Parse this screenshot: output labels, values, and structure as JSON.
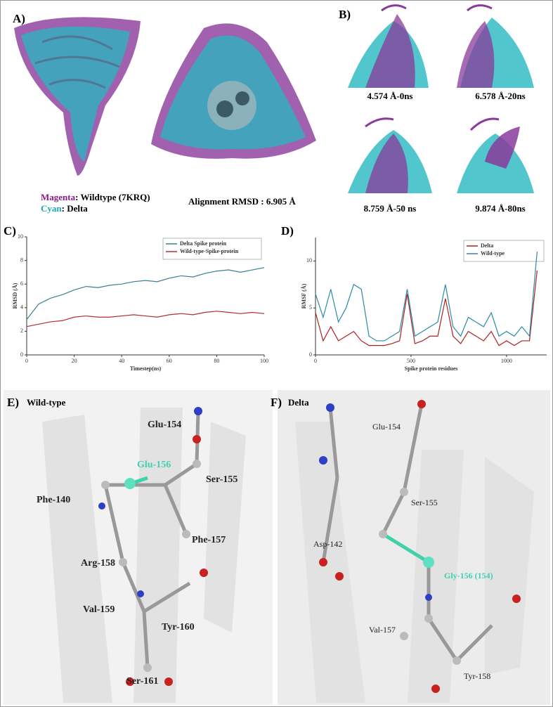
{
  "panels": {
    "A": {
      "letter": "A)",
      "legend": [
        {
          "color_word": "Magenta",
          "text": ": Wildtype (7KRQ)"
        },
        {
          "color_word": "Cyan",
          "text": ": Delta"
        }
      ],
      "alignment": "Alignment RMSD : 6.905 Å"
    },
    "B": {
      "letter": "B)",
      "captions": [
        "4.574 Å-0ns",
        "6.578 Å-20ns",
        "8.759 Å-50 ns",
        "9.874 Å-80ns"
      ]
    },
    "C": {
      "letter": "C)"
    },
    "D": {
      "letter": "D)"
    },
    "E": {
      "letter": "E)",
      "subtitle": "Wild-type",
      "residues": [
        "Glu-154",
        "Glu-156",
        "Ser-155",
        "Phe-140",
        "Phe-157",
        "Arg-158",
        "Val-159",
        "Tyr-160",
        "Ser-161"
      ]
    },
    "F": {
      "letter": "F)",
      "subtitle": "Delta",
      "residues": [
        "Glu-154",
        "Ser-155",
        "Asp-142",
        "Gly-156 (154)",
        "Val-157",
        "Tyr-158"
      ]
    }
  },
  "chart_data": [
    {
      "type": "line",
      "x_label": "Timestep(ns)",
      "y_label": "RMSD (Å)",
      "x": [
        0,
        5,
        10,
        15,
        20,
        25,
        30,
        35,
        40,
        45,
        50,
        55,
        60,
        65,
        70,
        75,
        80,
        85,
        90,
        95,
        100
      ],
      "series": [
        {
          "name": "Delta Spike protein",
          "color": "#3b7f91",
          "values": [
            3,
            4.3,
            4.8,
            5.1,
            5.5,
            5.8,
            5.7,
            5.9,
            6.0,
            6.2,
            6.3,
            6.2,
            6.5,
            6.7,
            6.6,
            6.9,
            7.1,
            7.2,
            7.0,
            7.2,
            7.4
          ]
        },
        {
          "name": "Wild-type-Spike-protein",
          "color": "#b03030",
          "values": [
            2.4,
            2.6,
            2.8,
            2.9,
            3.2,
            3.3,
            3.2,
            3.2,
            3.3,
            3.4,
            3.3,
            3.2,
            3.4,
            3.5,
            3.4,
            3.6,
            3.7,
            3.6,
            3.5,
            3.6,
            3.5
          ]
        }
      ],
      "xlim": [
        0,
        100
      ],
      "ylim": [
        0,
        10
      ],
      "xticks": [
        0,
        20,
        40,
        60,
        80,
        100
      ],
      "yticks": [
        0,
        2,
        4,
        6,
        8,
        10
      ]
    },
    {
      "type": "line",
      "x_label": "Spike protein residues",
      "y_label": "RMSF (Å)",
      "x": [
        0,
        40,
        80,
        120,
        160,
        200,
        240,
        280,
        320,
        360,
        400,
        440,
        480,
        520,
        560,
        600,
        640,
        680,
        720,
        760,
        800,
        840,
        880,
        920,
        960,
        1000,
        1040,
        1080,
        1120,
        1160
      ],
      "series": [
        {
          "name": "Delta",
          "color": "#b02020",
          "values": [
            4.5,
            1.5,
            3,
            1.5,
            2,
            2.5,
            1.5,
            1,
            1,
            1,
            1.2,
            1.5,
            6.5,
            1.2,
            1.5,
            2,
            2,
            6,
            2,
            1.2,
            2.5,
            2,
            1.5,
            2.5,
            1,
            1.5,
            1,
            1.5,
            1.5,
            9
          ]
        },
        {
          "name": "Wild-type",
          "color": "#2a8aa8",
          "values": [
            6.5,
            4,
            7,
            3.5,
            5,
            7.5,
            7,
            2,
            1.5,
            1.5,
            2,
            2.5,
            7,
            2,
            2.5,
            3,
            3.5,
            7.5,
            3,
            2,
            4,
            3.5,
            3,
            4.5,
            2,
            2.5,
            2,
            3,
            2,
            11
          ]
        }
      ],
      "xlim": [
        0,
        1210
      ],
      "ylim": [
        0,
        12.5
      ],
      "xticks": [
        0,
        500,
        1000
      ],
      "yticks": [
        0,
        5,
        10
      ]
    }
  ]
}
